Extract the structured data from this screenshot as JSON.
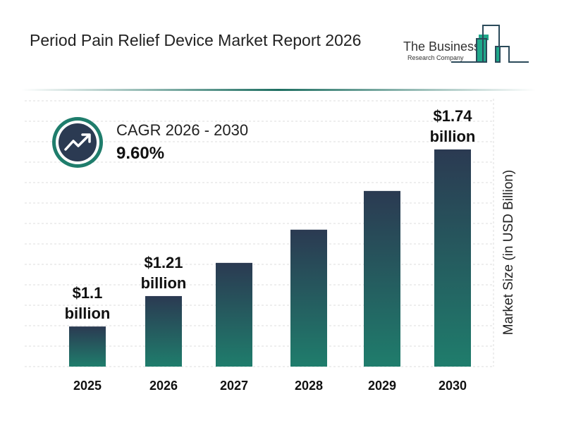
{
  "header": {
    "title": "Period Pain Relief Device Market Report 2026"
  },
  "logo": {
    "line1": "The Business",
    "line2": "Research Company"
  },
  "cagr": {
    "label": "CAGR 2026 - 2030",
    "value": "9.60%",
    "icon": "trending-up-icon"
  },
  "colors": {
    "bar_top": "#2b3a52",
    "bar_bottom": "#1f7d6c",
    "accent": "#1f6f62"
  },
  "chart_data": {
    "type": "bar",
    "categories": [
      "2025",
      "2026",
      "2027",
      "2028",
      "2029",
      "2030"
    ],
    "values": [
      1.1,
      1.21,
      1.33,
      1.45,
      1.59,
      1.74
    ],
    "data_labels": [
      {
        "index": 0,
        "line1": "$1.1",
        "line2": "billion"
      },
      {
        "index": 1,
        "line1": "$1.21",
        "line2": "billion"
      },
      {
        "index": 5,
        "line1": "$1.74",
        "line2": "billion"
      }
    ],
    "ylabel": "Market Size (in USD Billion)",
    "grid": true
  }
}
